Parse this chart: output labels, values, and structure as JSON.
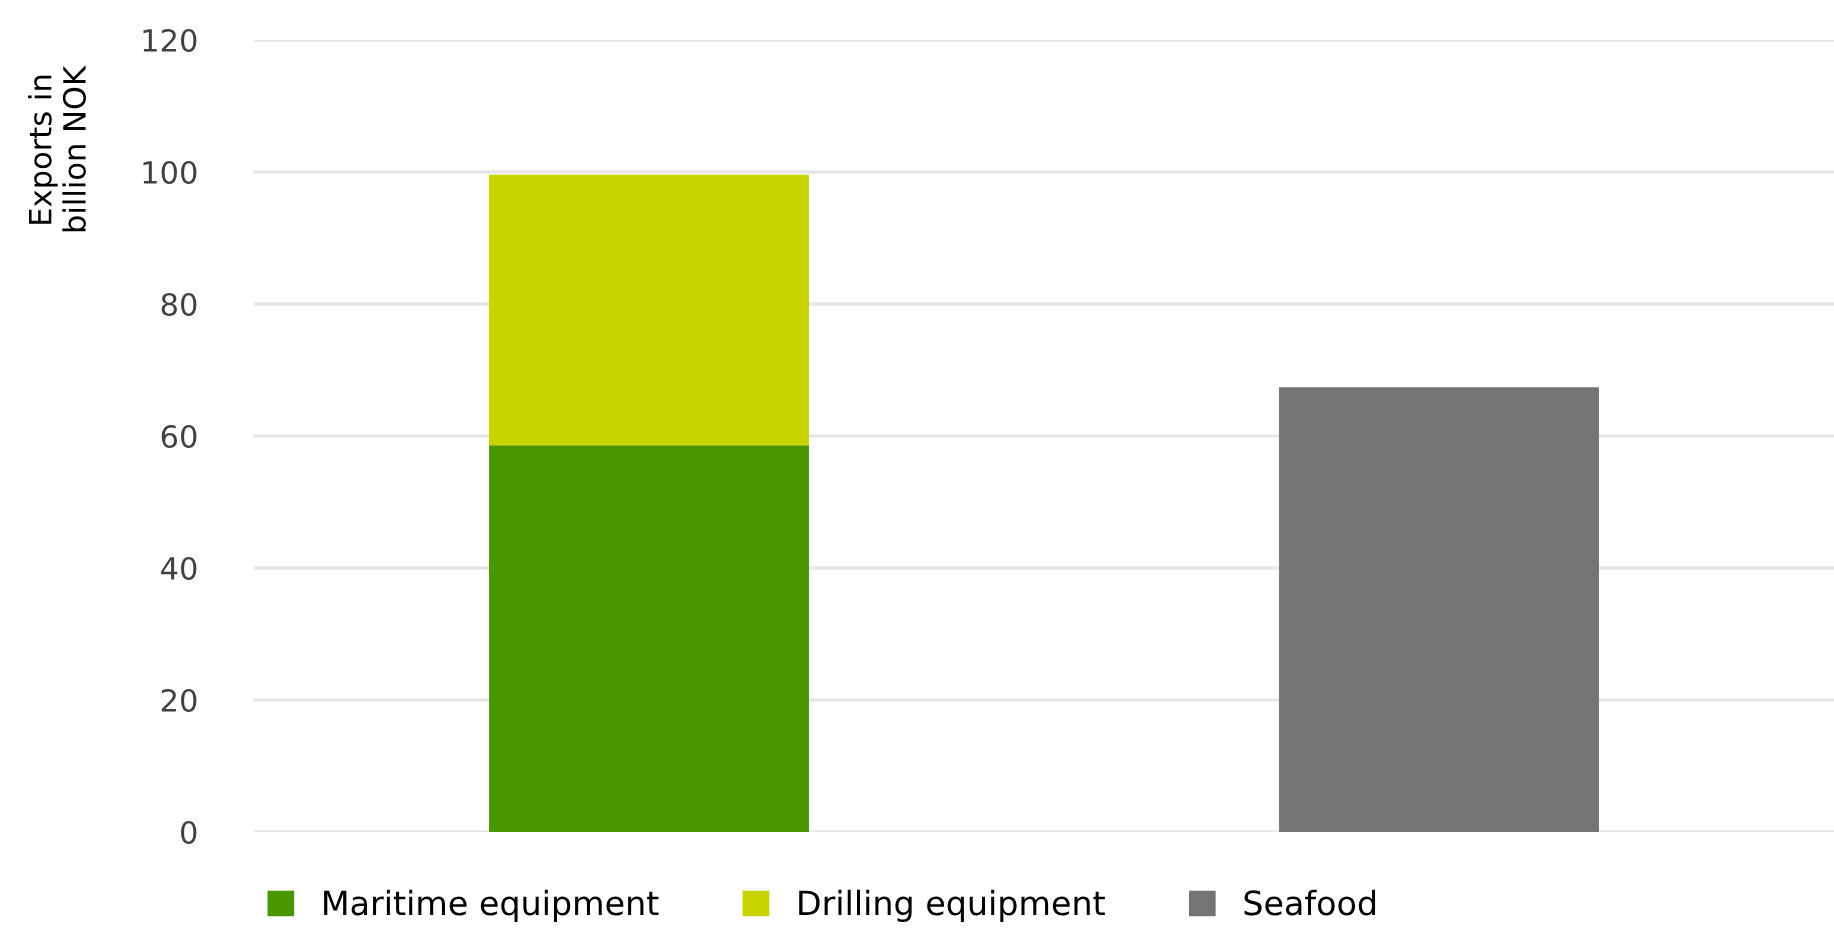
{
  "chart_data": {
    "type": "bar",
    "stacked": true,
    "ylabel": "Exports in\nbillion NOK",
    "categories": [
      null,
      null
    ],
    "series": [
      {
        "name": "Maritime equipment",
        "color": "#4a9600",
        "values": [
          58.6,
          null
        ]
      },
      {
        "name": "Drilling equipment",
        "color": "#c8d400",
        "values": [
          41.0,
          null
        ]
      },
      {
        "name": "Seafood",
        "color": "#747474",
        "values": [
          null,
          67.4
        ]
      }
    ],
    "ylim": [
      0,
      120
    ],
    "yticks": [
      0,
      20,
      40,
      60,
      80,
      100,
      120
    ],
    "grid": "y",
    "legend": "bottom"
  }
}
